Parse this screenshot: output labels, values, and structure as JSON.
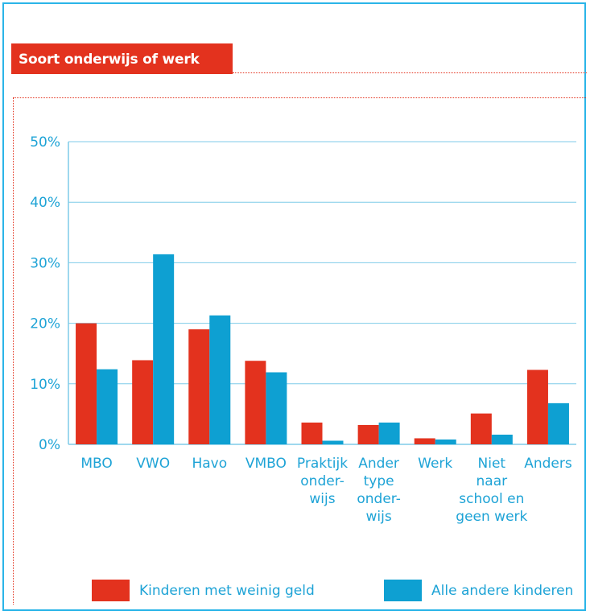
{
  "title": "Soort onderwijs of werk",
  "colors": {
    "series_red": "#e3321e",
    "series_blue": "#0ea0d2",
    "accent": "#2bb5e8",
    "grid": "#7fcbe8"
  },
  "chart_data": {
    "type": "bar",
    "categories": [
      [
        "MBO"
      ],
      [
        "VWO"
      ],
      [
        "Havo"
      ],
      [
        "VMBO"
      ],
      [
        "Praktijk",
        "onder-",
        "wijs"
      ],
      [
        "Ander",
        "type",
        "onder-",
        "wijs"
      ],
      [
        "Werk"
      ],
      [
        "Niet",
        "naar",
        "school en",
        "geen werk"
      ],
      [
        "Anders"
      ]
    ],
    "series": [
      {
        "name": "Kinderen met weinig geld",
        "values": [
          20,
          13.9,
          19,
          13.8,
          3.6,
          3.2,
          1,
          5.1,
          12.3
        ]
      },
      {
        "name": "Alle andere kinderen",
        "values": [
          12.4,
          31.4,
          21.3,
          11.9,
          0.6,
          3.6,
          0.8,
          1.6,
          6.8
        ]
      }
    ],
    "yticks": [
      "0%",
      "10%",
      "20%",
      "30%",
      "40%",
      "50%"
    ],
    "ylim": [
      0,
      50
    ],
    "grid": true,
    "legend_position": "bottom"
  }
}
